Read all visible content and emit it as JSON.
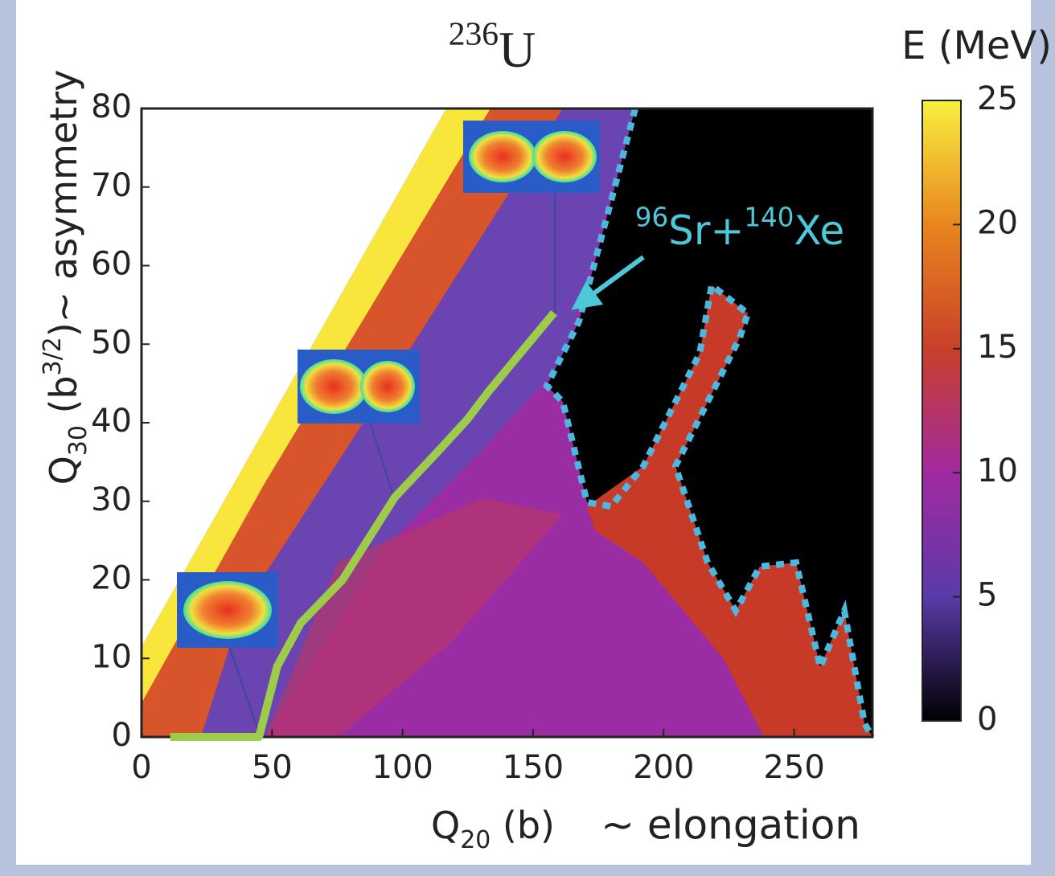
{
  "chart_data": {
    "type": "line",
    "title": [
      {
        "text": "236",
        "shift": "sup"
      },
      {
        "text": "U"
      }
    ],
    "xlabel": [
      {
        "text": "Q"
      },
      {
        "text": "20",
        "shift": "sub"
      },
      {
        "text": " (b)"
      }
    ],
    "xlabel_note": "~ elongation",
    "ylabel": [
      {
        "text": "Q"
      },
      {
        "text": "30",
        "shift": "sub"
      },
      {
        "text": " (b"
      },
      {
        "text": "3/2",
        "shift": "sup"
      },
      {
        "text": ")~ asymmetry"
      }
    ],
    "annotation": [
      {
        "text": "96",
        "shift": "sup"
      },
      {
        "text": "Sr+"
      },
      {
        "text": "140",
        "shift": "sup"
      },
      {
        "text": "Xe"
      }
    ],
    "x": [
      11,
      45,
      52,
      61,
      77,
      97,
      114,
      125,
      133,
      158
    ],
    "y": [
      0,
      0,
      9,
      14.5,
      20,
      30.5,
      36.5,
      40.5,
      44,
      54
    ],
    "color": "#9ccc4a",
    "xlim": [
      0,
      280
    ],
    "ylim": [
      0,
      80
    ],
    "xticks": [
      0,
      50,
      100,
      150,
      200,
      250
    ],
    "yticks": [
      0,
      10,
      20,
      30,
      40,
      50,
      60,
      70,
      80
    ],
    "colorbar": {
      "label": "E (MeV)",
      "lim": [
        0,
        25
      ],
      "ticks": [
        0,
        5,
        10,
        15,
        20,
        25
      ],
      "colors": [
        "#000000",
        "#5a3aa8",
        "#a22aa0",
        "#c8402a",
        "#e8861e",
        "#f8f040"
      ]
    }
  }
}
